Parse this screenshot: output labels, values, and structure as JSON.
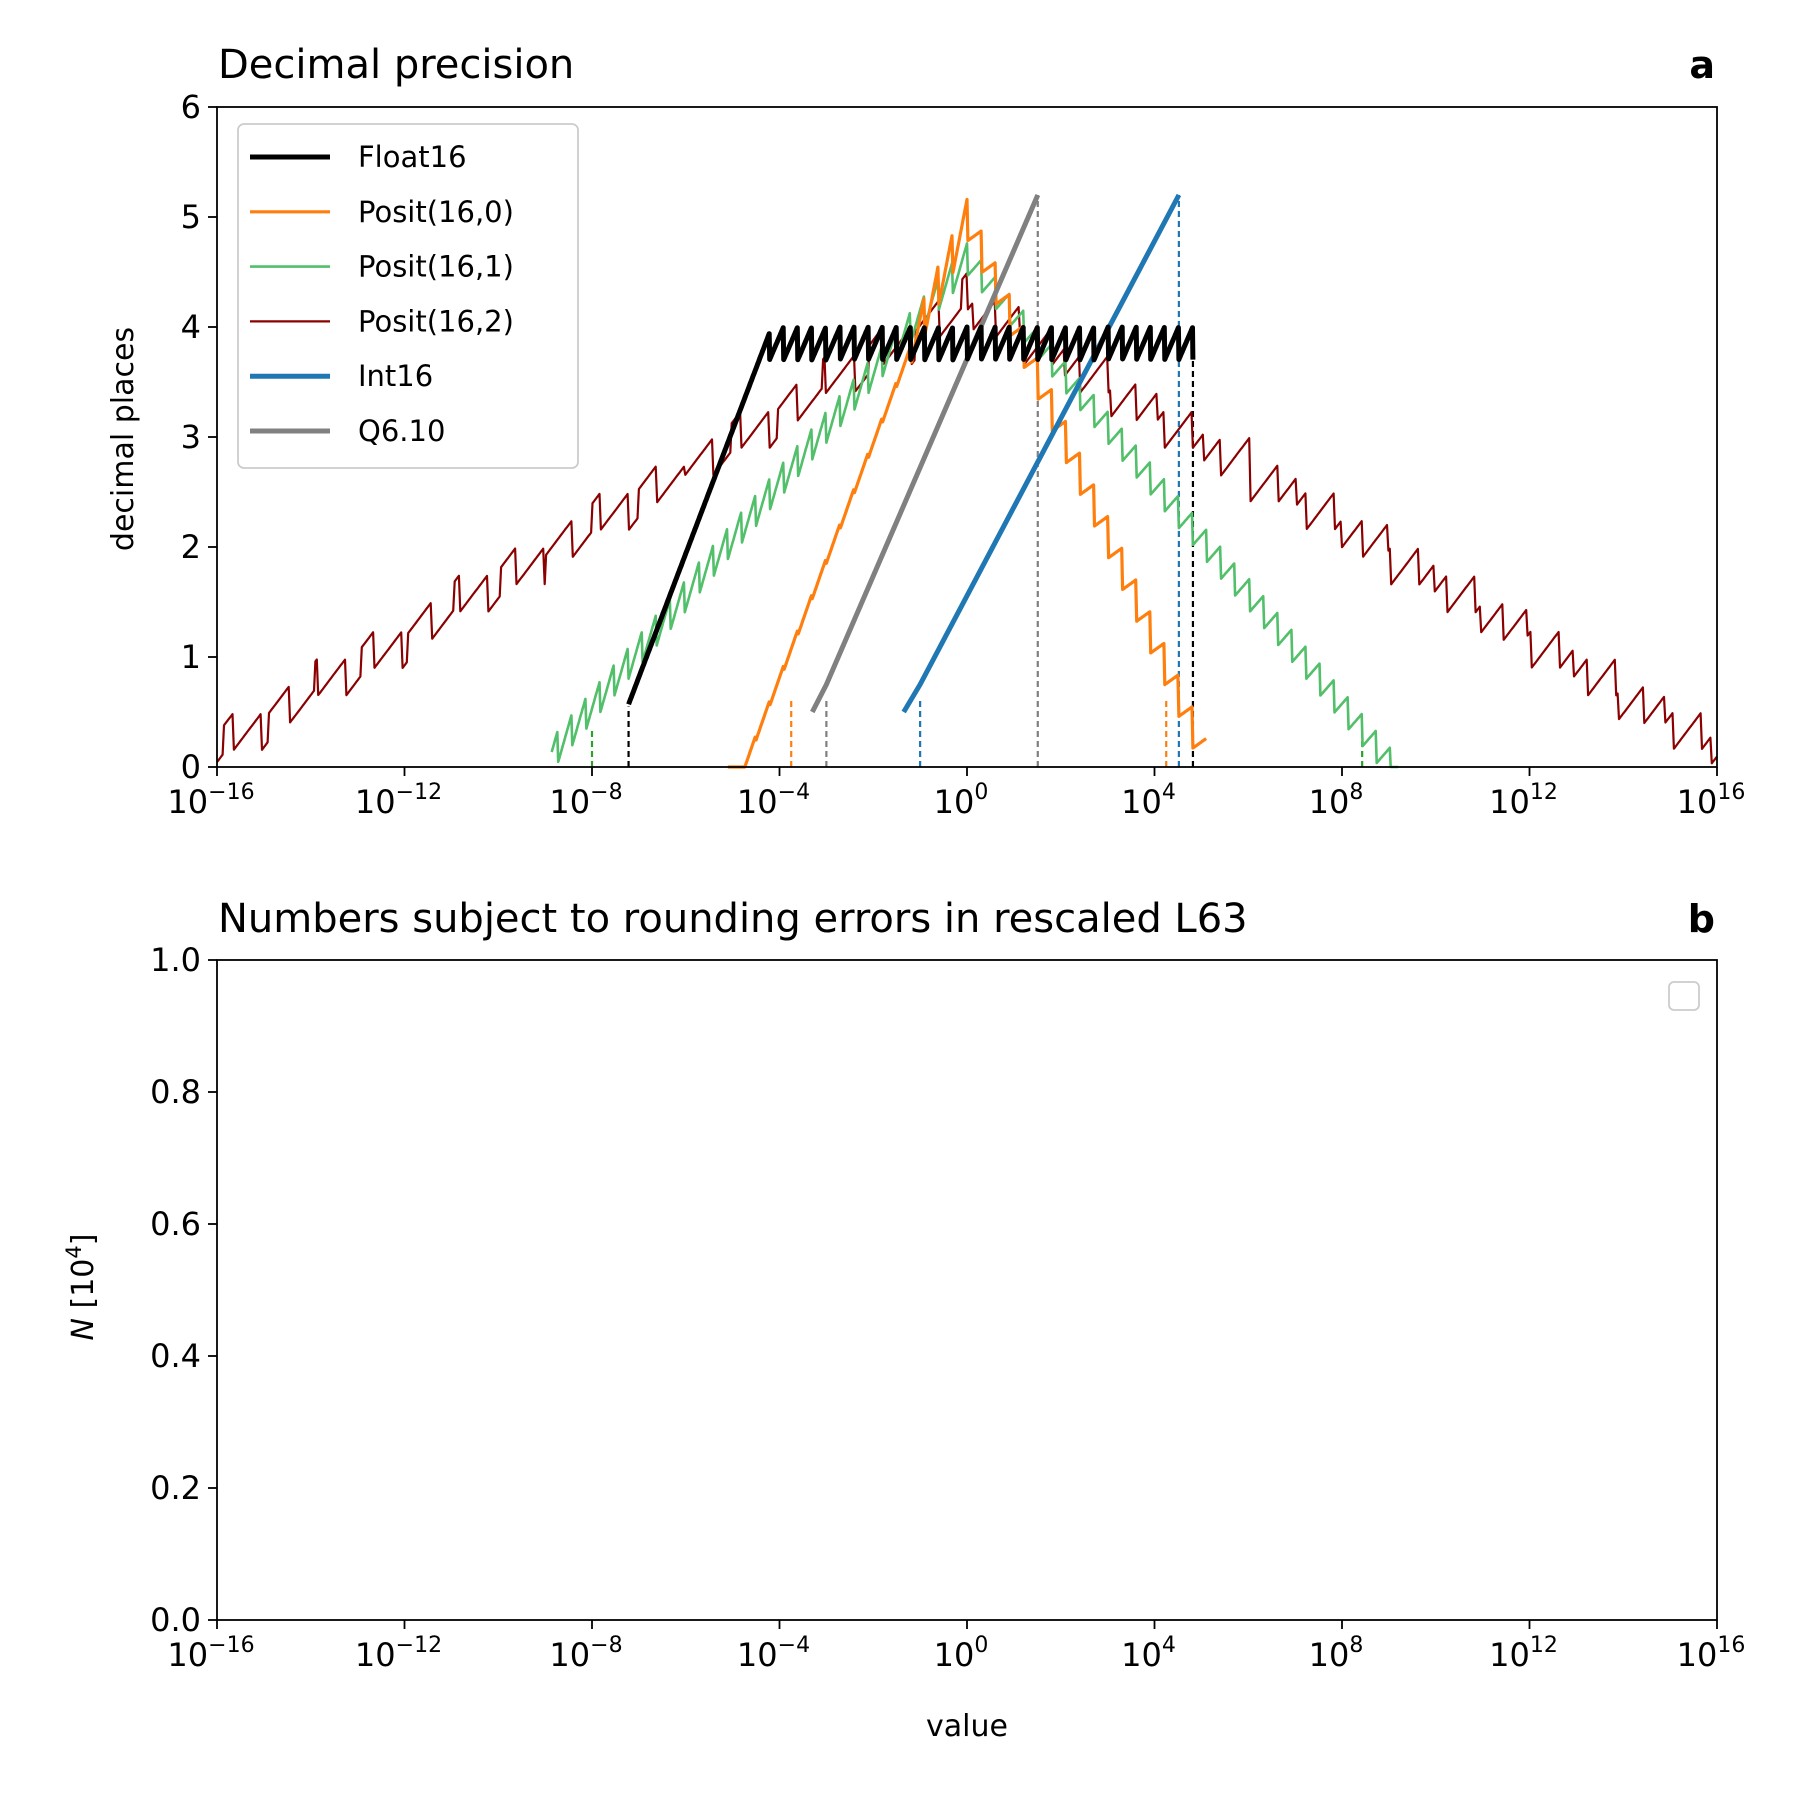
{
  "colors": {
    "Float16": "#000000",
    "Posit(16,0)": "#ff7f0e",
    "Posit(16,1)": "#52bf6a",
    "Posit(16,2)": "#8b0000",
    "Int16": "#1f77b4",
    "Q6.10": "#808080"
  },
  "chart_data": [
    {
      "type": "line",
      "title": "Decimal precision",
      "panel_label": "a",
      "xlabel": "",
      "ylabel": "decimal places",
      "xscale": "log10",
      "xlim": [
        -16,
        16
      ],
      "ylim": [
        0,
        6
      ],
      "x_ticks": [
        -16,
        -12,
        -8,
        -4,
        0,
        4,
        8,
        12,
        16
      ],
      "x_tick_labels": [
        {
          "base": "10",
          "exp": "−16"
        },
        {
          "base": "10",
          "exp": "−12"
        },
        {
          "base": "10",
          "exp": "−8"
        },
        {
          "base": "10",
          "exp": "−4"
        },
        {
          "base": "10",
          "exp": "0"
        },
        {
          "base": "10",
          "exp": "4"
        },
        {
          "base": "10",
          "exp": "8"
        },
        {
          "base": "10",
          "exp": "12"
        },
        {
          "base": "10",
          "exp": "16"
        }
      ],
      "y_ticks": [
        "0",
        "1",
        "2",
        "3",
        "4",
        "5",
        "6"
      ],
      "legend_position": "upper-left",
      "legend": [
        "Float16",
        "Posit(16,0)",
        "Posit(16,1)",
        "Posit(16,2)",
        "Int16",
        "Q6.10"
      ],
      "series": [
        {
          "name": "Float16",
          "log10_minpos": -7.22,
          "log10_max": 4.82,
          "log10_normal_min": -4.21,
          "peak": 3.9,
          "sawtooth": 0.3,
          "min_at_minpos": 0.52
        },
        {
          "name": "Posit(16,0)",
          "log10_minpos": -4.25,
          "log10_max": 4.25,
          "peak": 4.88
        },
        {
          "name": "Posit(16,1)",
          "log10_minpos": -8.43,
          "log10_max": 8.43,
          "peak": 4.58
        },
        {
          "name": "Posit(16,2)",
          "log10_minpos": -16.86,
          "log10_max": 16.86,
          "peak": 4.28
        },
        {
          "name": "Int16",
          "log10_min": -1.0,
          "log10_max": 4.52,
          "peak": 5.2
        },
        {
          "name": "Q6.10",
          "log10_min": -3.3,
          "log10_max": 1.51,
          "peak": 5.2
        }
      ],
      "range_markers": [
        {
          "series": "Float16",
          "x": [
            -7.22,
            4.82
          ]
        },
        {
          "series": "Posit(16,0)",
          "x": [
            -3.75,
            4.25
          ]
        },
        {
          "series": "Posit(16,1)",
          "x": [
            -8.0,
            8.43
          ]
        },
        {
          "series": "Int16",
          "x": [
            -1.0,
            4.52
          ]
        },
        {
          "series": "Q6.10",
          "x": [
            -3.0,
            1.51
          ]
        }
      ]
    },
    {
      "type": "line",
      "title": "Numbers subject to rounding errors in rescaled L63",
      "panel_label": "b",
      "xlabel": "value",
      "ylabel": {
        "symbol": "N",
        "unit_base": "10",
        "unit_exp": "4"
      },
      "xscale": "log10",
      "xlim": [
        -16,
        16
      ],
      "ylim": [
        0,
        1
      ],
      "x_ticks": [
        -16,
        -12,
        -8,
        -4,
        0,
        4,
        8,
        12,
        16
      ],
      "x_tick_labels": [
        {
          "base": "10",
          "exp": "−16"
        },
        {
          "base": "10",
          "exp": "−12"
        },
        {
          "base": "10",
          "exp": "−8"
        },
        {
          "base": "10",
          "exp": "−4"
        },
        {
          "base": "10",
          "exp": "0"
        },
        {
          "base": "10",
          "exp": "4"
        },
        {
          "base": "10",
          "exp": "8"
        },
        {
          "base": "10",
          "exp": "12"
        },
        {
          "base": "10",
          "exp": "16"
        }
      ],
      "y_ticks": [
        "0.0",
        "0.2",
        "0.4",
        "0.6",
        "0.8",
        "1.0"
      ],
      "legend_position": "upper-right",
      "legend": [],
      "series": []
    }
  ]
}
